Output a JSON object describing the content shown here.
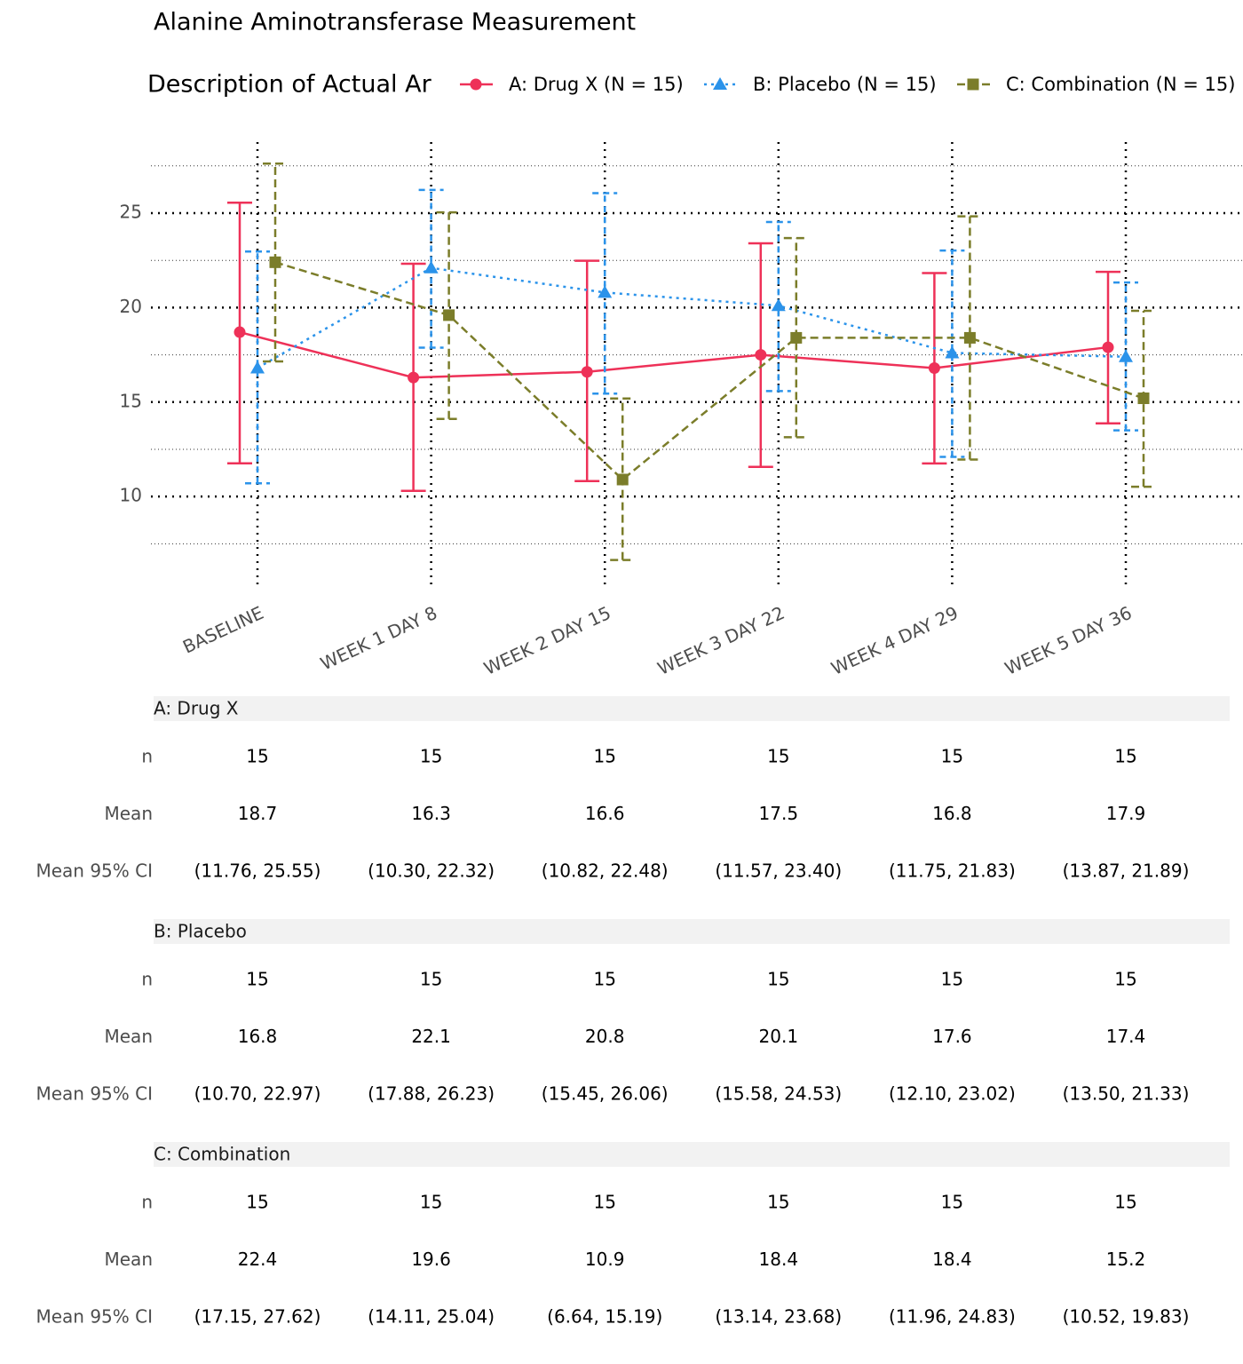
{
  "chart_data": {
    "type": "line",
    "title": "Alanine Aminotransferase Measurement",
    "legend_title": "Description of Actual Ar",
    "categories": [
      "BASELINE",
      "WEEK 1 DAY 8",
      "WEEK 2 DAY 15",
      "WEEK 3 DAY 22",
      "WEEK 4 DAY 29",
      "WEEK 5 DAY 36"
    ],
    "ylim": [
      5.26,
      28.76
    ],
    "yticks": [
      10,
      15,
      20,
      25
    ],
    "minor_yticks": [
      7.5,
      12.5,
      17.5,
      22.5,
      27.5
    ],
    "grid": true,
    "legend_position": "top",
    "table_row_labels": [
      "n",
      "Mean",
      "Mean 95% CI"
    ],
    "series": [
      {
        "name": "A: Drug X (N = 15)",
        "table_name": "A: Drug X",
        "color": "#ee3158",
        "marker": "circle",
        "line_style": "solid",
        "values": [
          18.7,
          16.3,
          16.6,
          17.5,
          16.8,
          17.9
        ],
        "lower": [
          11.76,
          10.3,
          10.82,
          11.57,
          11.75,
          13.87
        ],
        "upper": [
          25.55,
          22.32,
          22.48,
          23.4,
          21.83,
          21.89
        ],
        "n": [
          15,
          15,
          15,
          15,
          15,
          15
        ],
        "ci_labels": [
          "(11.76, 25.55)",
          "(10.30, 22.32)",
          "(10.82, 22.48)",
          "(11.57, 23.40)",
          "(11.75, 21.83)",
          "(13.87, 21.89)"
        ]
      },
      {
        "name": "B: Placebo (N = 15)",
        "table_name": "B: Placebo",
        "color": "#2b93ea",
        "marker": "triangle",
        "line_style": "dotted",
        "values": [
          16.8,
          22.1,
          20.8,
          20.1,
          17.6,
          17.4
        ],
        "lower": [
          10.7,
          17.88,
          15.45,
          15.58,
          12.1,
          13.5
        ],
        "upper": [
          22.97,
          26.23,
          26.06,
          24.53,
          23.02,
          21.33
        ],
        "n": [
          15,
          15,
          15,
          15,
          15,
          15
        ],
        "ci_labels": [
          "(10.70, 22.97)",
          "(17.88, 26.23)",
          "(15.45, 26.06)",
          "(15.58, 24.53)",
          "(12.10, 23.02)",
          "(13.50, 21.33)"
        ]
      },
      {
        "name": "C: Combination (N = 15)",
        "table_name": "C: Combination",
        "color": "#7b7d2a",
        "marker": "square",
        "line_style": "dashed",
        "values": [
          22.4,
          19.6,
          10.9,
          18.4,
          18.4,
          15.2
        ],
        "lower": [
          17.15,
          14.11,
          6.64,
          13.14,
          11.96,
          10.52
        ],
        "upper": [
          27.62,
          25.04,
          15.19,
          23.68,
          24.83,
          19.83
        ],
        "n": [
          15,
          15,
          15,
          15,
          15,
          15
        ],
        "ci_labels": [
          "(17.15, 27.62)",
          "(14.11, 25.04)",
          "(6.64, 15.19)",
          "(13.14, 23.68)",
          "(11.96, 24.83)",
          "(10.52, 19.83)"
        ]
      }
    ]
  }
}
